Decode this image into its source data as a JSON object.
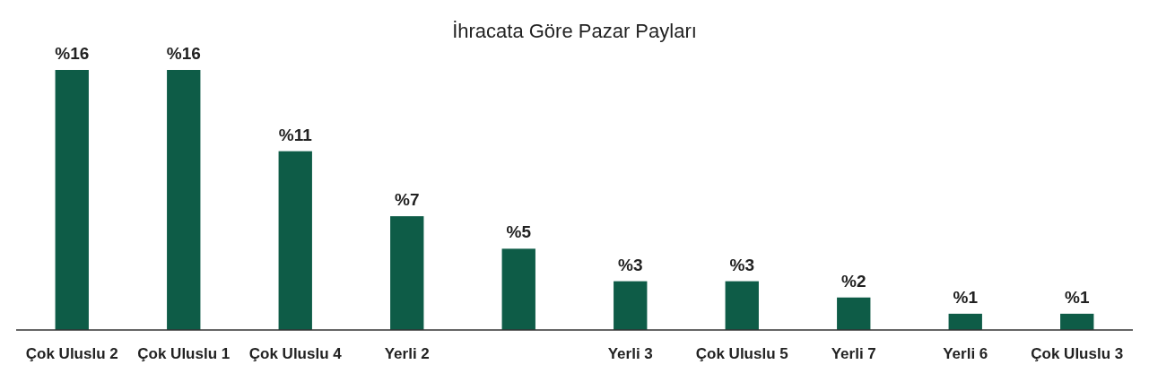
{
  "chart_data": {
    "type": "bar",
    "title": "İhracata Göre Pazar Payları",
    "categories": [
      "Çok Uluslu 2",
      "Çok Uluslu 1",
      "Çok Uluslu 4",
      "Yerli 2",
      null,
      "Yerli 3",
      "Çok Uluslu 5",
      "Yerli 7",
      "Yerli 6",
      "Çok Uluslu 3"
    ],
    "values": [
      16,
      16,
      11,
      7,
      5,
      3,
      3,
      2,
      1,
      1
    ],
    "value_labels": [
      "%16",
      "%16",
      "%11",
      "%7",
      "%5",
      "%3",
      "%3",
      "%2",
      "%1",
      "%1"
    ],
    "color": "#0e5c47"
  }
}
